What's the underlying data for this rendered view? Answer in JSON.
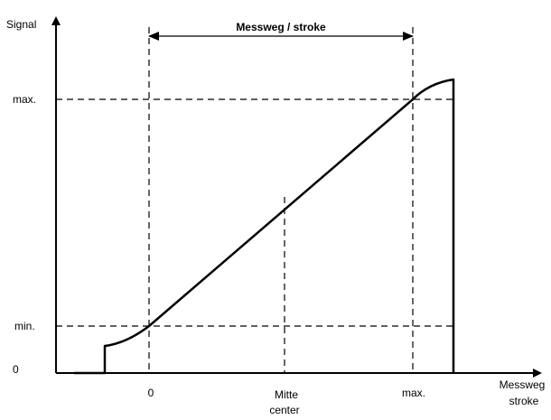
{
  "axes": {
    "y_label": "Signal",
    "x_label_line1": "Messweg",
    "x_label_line2": "stroke"
  },
  "y_ticks": {
    "max": "max.",
    "min": "min.",
    "zero": "0"
  },
  "x_ticks": {
    "zero": "0",
    "center_line1": "Mitte",
    "center_line2": "center",
    "max": "max."
  },
  "dimension": {
    "label": "Messweg / stroke"
  }
}
